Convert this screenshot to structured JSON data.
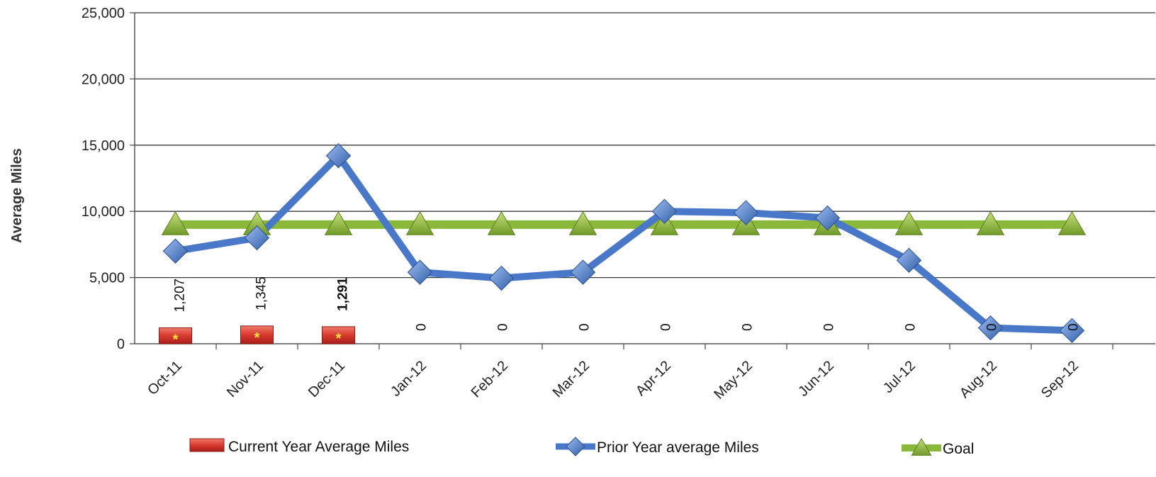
{
  "chart_data": {
    "type": "bar",
    "title": "",
    "xlabel": "",
    "ylabel": "Average Miles",
    "ylim": [
      0,
      25000
    ],
    "yticks": [
      "0",
      "5,000",
      "10,000",
      "15,000",
      "20,000",
      "25,000"
    ],
    "grid": true,
    "legend_position": "bottom",
    "categories": [
      "Oct-11",
      "Nov-11",
      "Dec-11",
      "Jan-12",
      "Feb-12",
      "Mar-12",
      "Apr-12",
      "May-12",
      "Jun-12",
      "Jul-12",
      "Aug-12",
      "Sep-12"
    ],
    "series": [
      {
        "name": "Current Year Average Miles",
        "kind": "bar",
        "color": "#d83a2f",
        "values": [
          1207,
          1345,
          1291,
          0,
          0,
          0,
          0,
          0,
          0,
          0,
          0,
          0
        ],
        "labels": [
          "1,207",
          "1,345",
          "1,291",
          "0",
          "0",
          "0",
          "0",
          "0",
          "0",
          "0",
          "0",
          "0"
        ],
        "bar_marker": "*"
      },
      {
        "name": "Prior Year average Miles",
        "kind": "line",
        "marker": "diamond",
        "color": "#4a78c8",
        "values": [
          7000,
          8000,
          14200,
          5400,
          4950,
          5400,
          10000,
          9900,
          9500,
          6300,
          1200,
          1000
        ]
      },
      {
        "name": "Goal",
        "kind": "line",
        "marker": "triangle",
        "color": "#8ab83a",
        "values": [
          9000,
          9000,
          9000,
          9000,
          9000,
          9000,
          9000,
          9000,
          9000,
          9000,
          9000,
          9000
        ]
      }
    ]
  }
}
